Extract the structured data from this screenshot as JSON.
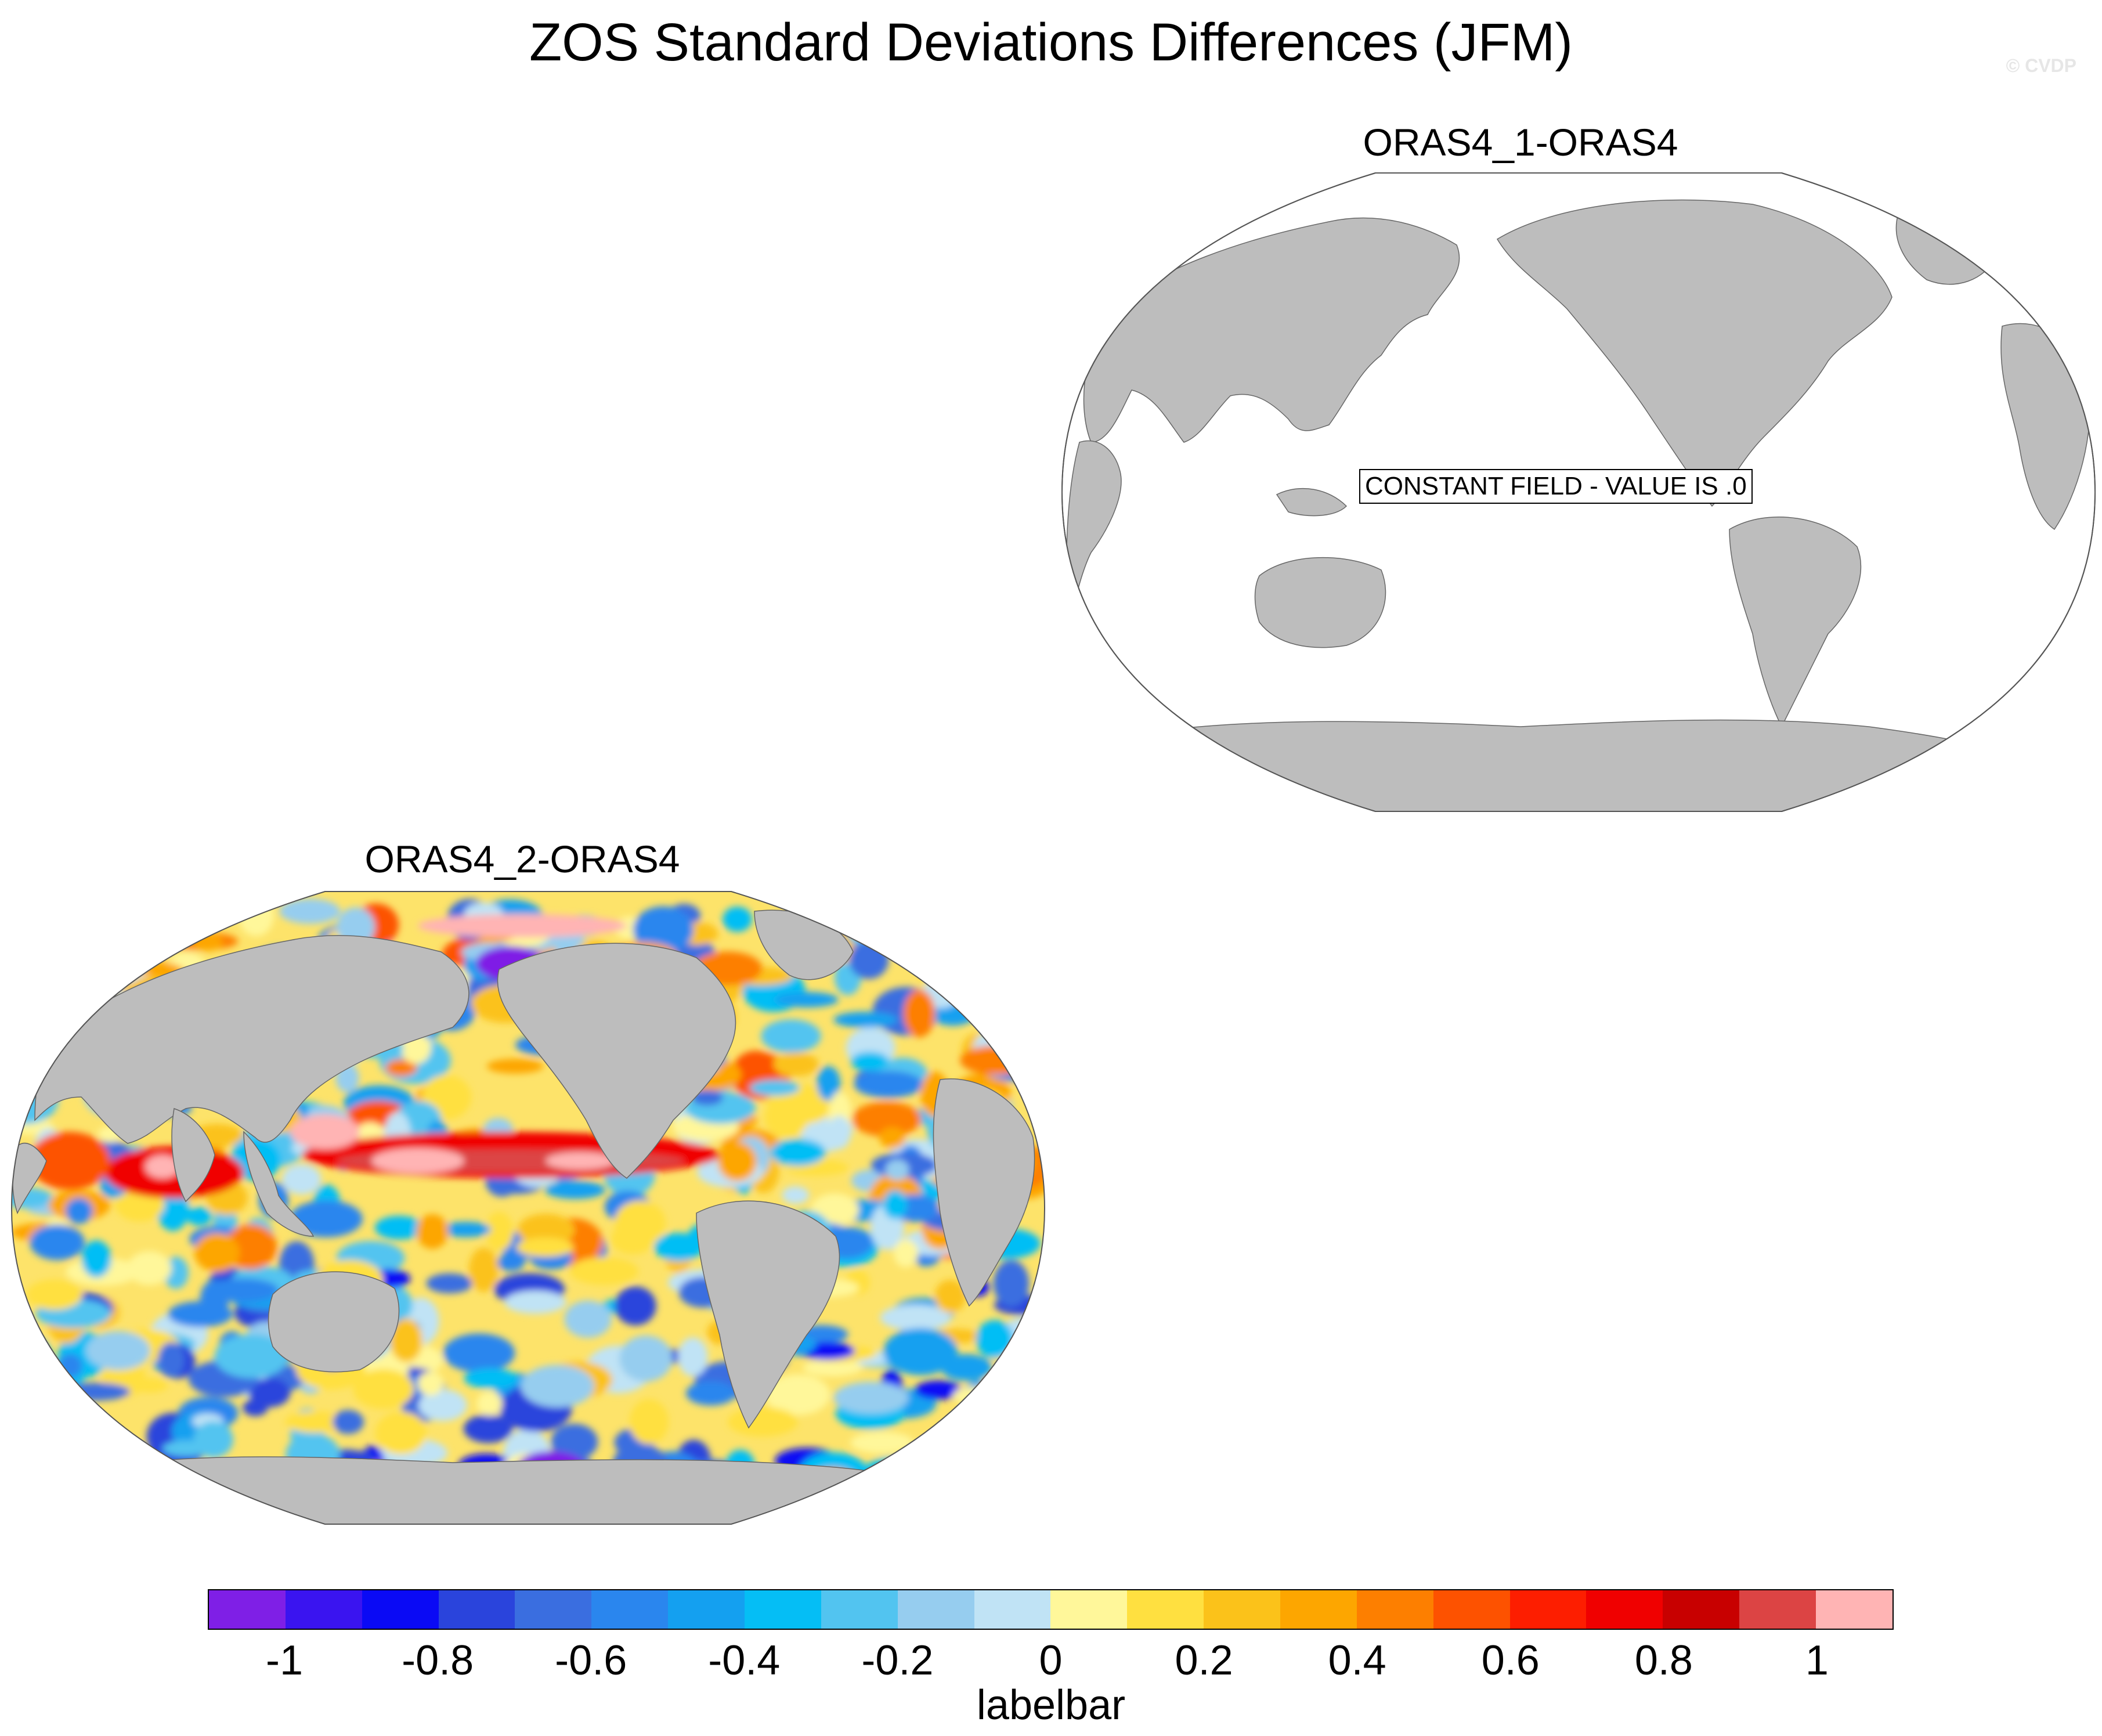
{
  "title": "ZOS Standard Deviations Differences (JFM)",
  "credit": "© CVDP",
  "colors": {
    "land": "#bdbdbd",
    "ocean_blank": "#ffffff",
    "palette": [
      "#7f1fe6",
      "#3a14f0",
      "#0a0af5",
      "#2a44dc",
      "#3a6ee0",
      "#2a86ee",
      "#14a0f0",
      "#05bef5",
      "#52c4f0",
      "#96cdef",
      "#c0e3f5",
      "#fff79a",
      "#ffe040",
      "#fbc21a",
      "#fda600",
      "#fd7f00",
      "#fd5200",
      "#fd1e00",
      "#f00000",
      "#c80000",
      "#dc4444",
      "#ffb4b4"
    ]
  },
  "chart_data": [
    {
      "type": "heatmap",
      "panel": "top-right",
      "title": "ORAS4_1-ORAS4",
      "projection": "Robinson",
      "annotation": "CONSTANT FIELD - VALUE IS .0",
      "field": "constant",
      "value": 0.0
    },
    {
      "type": "heatmap",
      "panel": "bottom-left",
      "title": "ORAS4_2-ORAS4",
      "projection": "Robinson",
      "field": "ZOS standard deviation difference (JFM)",
      "value_range": [
        -1.1,
        1.1
      ],
      "features": [
        {
          "region": "equatorial Pacific",
          "value": 0.9
        },
        {
          "region": "western tropical Pacific",
          "value": 1.0
        },
        {
          "region": "Indian Ocean",
          "value": 0.5
        },
        {
          "region": "Southern Ocean",
          "value": -0.6
        },
        {
          "region": "North Pacific",
          "value": -0.4
        },
        {
          "region": "Arctic",
          "value": -1.0
        },
        {
          "region": "South Atlantic",
          "value": 0.4
        }
      ]
    }
  ],
  "colorbar": {
    "label": "labelbar",
    "boundaries": [
      -1.1,
      -1.0,
      -0.9,
      -0.8,
      -0.7,
      -0.6,
      -0.5,
      -0.4,
      -0.3,
      -0.2,
      -0.1,
      0,
      0.1,
      0.2,
      0.3,
      0.4,
      0.5,
      0.6,
      0.7,
      0.8,
      0.9,
      1.0,
      1.1
    ],
    "tick_values": [
      -1,
      -0.8,
      -0.6,
      -0.4,
      -0.2,
      0,
      0.2,
      0.4,
      0.6,
      0.8,
      1
    ],
    "tick_labels": [
      "-1",
      "-0.8",
      "-0.6",
      "-0.4",
      "-0.2",
      "0",
      "0.2",
      "0.4",
      "0.6",
      "0.8",
      "1"
    ]
  }
}
